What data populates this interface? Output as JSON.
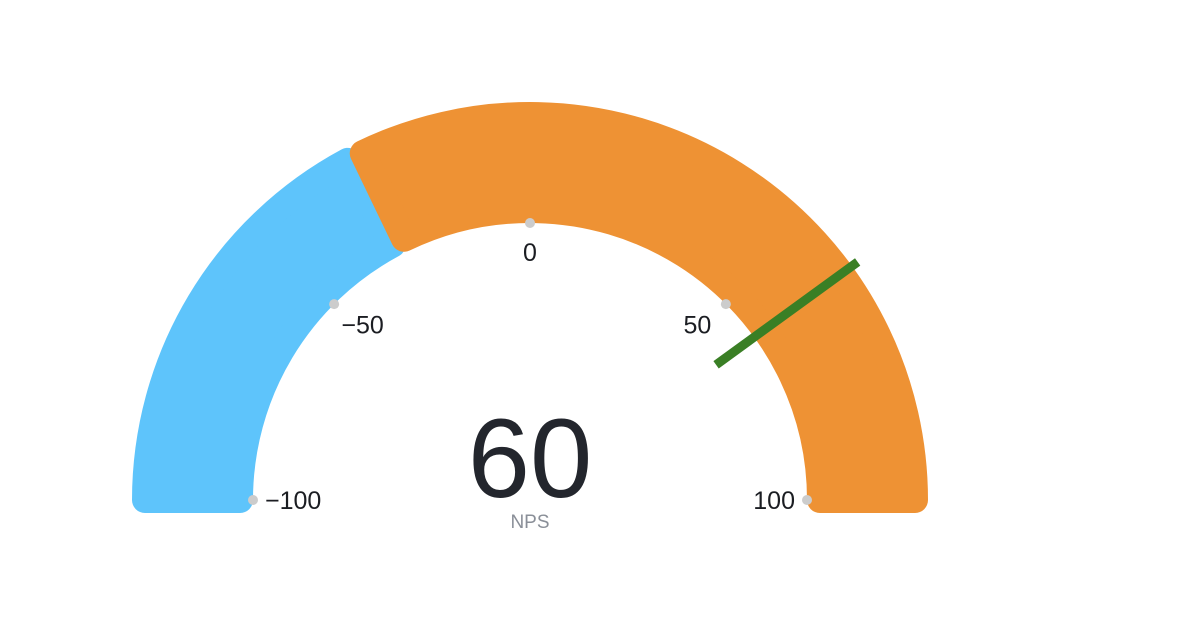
{
  "chart_data": {
    "type": "gauge",
    "min": -100,
    "max": 100,
    "value": 60,
    "unit": "NPS",
    "target": 60,
    "bands": [
      {
        "from": -100,
        "to": -30,
        "color": "#5ec4fb"
      },
      {
        "from": -30,
        "to": 100,
        "color": "#ee9234"
      }
    ],
    "ticks": [
      {
        "value": -100,
        "label": "−100"
      },
      {
        "value": -50,
        "label": "−50"
      },
      {
        "value": 0,
        "label": "0"
      },
      {
        "value": 50,
        "label": "50"
      },
      {
        "value": 100,
        "label": "100"
      }
    ],
    "target_color": "#3a7f25",
    "tick_dot_color": "#cccccc"
  }
}
